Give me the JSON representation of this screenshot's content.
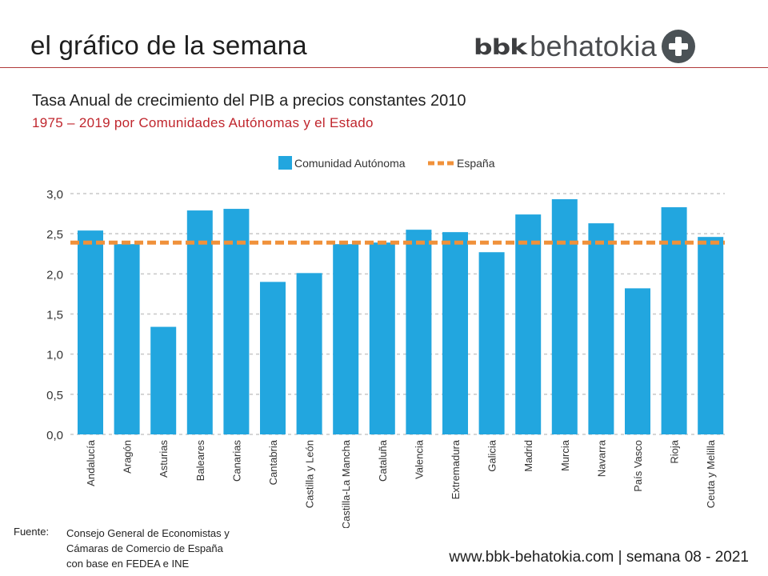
{
  "header": {
    "title": "el gráfico de la semana",
    "logo_bold": "bbk",
    "logo_light": "behatokia",
    "logo_icon": "plus-circle-icon"
  },
  "colors": {
    "bar": "#22a6df",
    "reference_line": "#f0913a",
    "grid": "#c8c8c8",
    "accent_red": "#c0262d"
  },
  "chart_data": {
    "type": "bar",
    "title": "Tasa Anual de crecimiento del PIB a precios constantes 2010",
    "subtitle": "1975 – 2019 por Comunidades Autónomas y el Estado",
    "xlabel": "",
    "ylabel": "",
    "ylim": [
      0,
      3
    ],
    "yticks": [
      0,
      0.5,
      1,
      1.5,
      2,
      2.5,
      3
    ],
    "ytick_labels": [
      "0,0",
      "0,5",
      "1,0",
      "1,5",
      "2,0",
      "2,5",
      "3,0"
    ],
    "grid": true,
    "legend_position": "top",
    "categories": [
      "Andalucía",
      "Aragón",
      "Asturias",
      "Baleares",
      "Canarias",
      "Cantabria",
      "Castilla y León",
      "Castilla-La Mancha",
      "Cataluña",
      "Valencia",
      "Extremadura",
      "Galicia",
      "Madrid",
      "Murcia",
      "Navarra",
      "País Vasco",
      "Rioja",
      "Ceuta y Melilla"
    ],
    "series": [
      {
        "name": "Comunidad Autónoma",
        "type": "bar",
        "values": [
          2.54,
          2.37,
          1.34,
          2.79,
          2.81,
          1.9,
          2.01,
          2.37,
          2.39,
          2.55,
          2.52,
          2.27,
          2.74,
          2.93,
          2.63,
          1.82,
          2.83,
          2.46
        ]
      },
      {
        "name": "España",
        "type": "reference-line",
        "value": 2.39
      }
    ]
  },
  "footer": {
    "source_label": "Fuente:",
    "source_lines": [
      "Consejo General de Economistas y",
      "Cámaras de Comercio de España",
      "con base en FEDEA e INE"
    ],
    "url_text": "www.bbk-behatokia.com | semana 08 - 2021"
  }
}
